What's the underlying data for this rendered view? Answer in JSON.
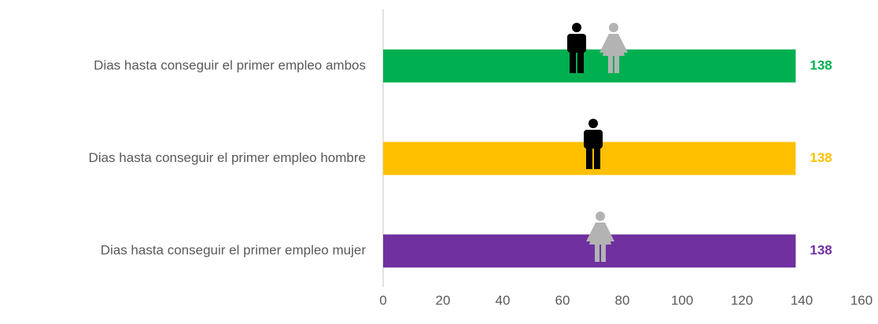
{
  "chart_data": {
    "type": "bar",
    "orientation": "horizontal",
    "categories": [
      "Dias hasta conseguir el primer empleo ambos",
      "Dias hasta conseguir el primer empleo hombre",
      "Dias hasta conseguir el primer empleo mujer"
    ],
    "values": [
      138,
      138,
      138
    ],
    "colors": [
      "#00b050",
      "#ffc000",
      "#7030a0"
    ],
    "xlim": [
      0,
      160
    ],
    "xticks": [
      0,
      20,
      40,
      60,
      80,
      100,
      120,
      140,
      160
    ],
    "grid": false
  }
}
